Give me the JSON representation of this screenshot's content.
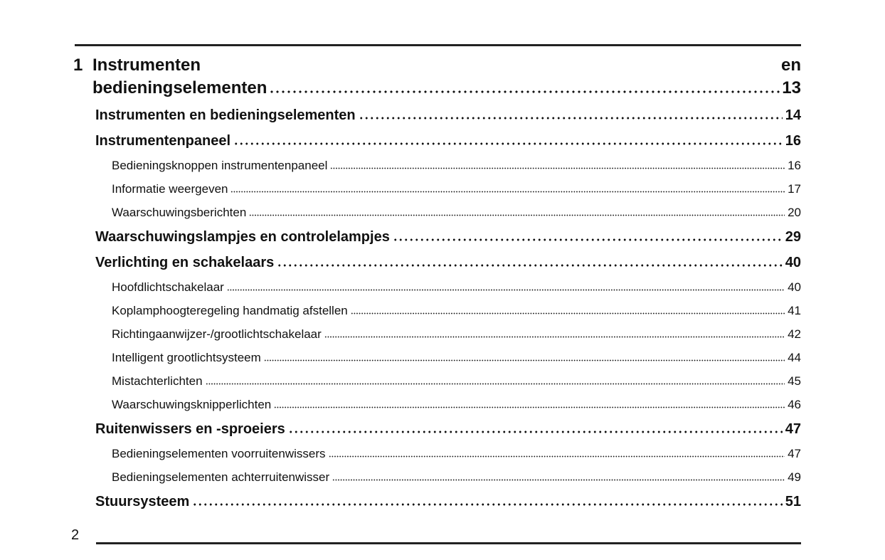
{
  "chapter": {
    "number": "1",
    "title_line1": "Instrumenten",
    "title_line1_end": "en",
    "title_line2": "bedieningselementen",
    "page": "13"
  },
  "entries": [
    {
      "level": 1,
      "label": "Instrumenten en bedieningselementen",
      "page": "14"
    },
    {
      "level": 1,
      "label": "Instrumentenpaneel",
      "page": "16"
    },
    {
      "level": 2,
      "label": "Bedieningsknoppen instrumentenpaneel",
      "page": "16"
    },
    {
      "level": 2,
      "label": "Informatie weergeven",
      "page": "17"
    },
    {
      "level": 2,
      "label": "Waarschuwingsberichten",
      "page": "20"
    },
    {
      "level": 1,
      "label": "Waarschuwingslampjes en controlelampjes",
      "page": "29"
    },
    {
      "level": 1,
      "label": "Verlichting en schakelaars",
      "page": "40"
    },
    {
      "level": 2,
      "label": "Hoofdlichtschakelaar",
      "page": "40"
    },
    {
      "level": 2,
      "label": "Koplamphoogteregeling handmatig afstellen",
      "page": "41"
    },
    {
      "level": 2,
      "label": "Richtingaanwijzer-/grootlichtschakelaar",
      "page": "42"
    },
    {
      "level": 2,
      "label": "Intelligent grootlichtsysteem",
      "page": "44"
    },
    {
      "level": 2,
      "label": "Mistachterlichten",
      "page": "45"
    },
    {
      "level": 2,
      "label": "Waarschuwingsknipperlichten",
      "page": "46"
    },
    {
      "level": 1,
      "label": "Ruitenwissers en -sproeiers",
      "page": "47"
    },
    {
      "level": 2,
      "label": "Bedieningselementen voorruitenwissers",
      "page": "47"
    },
    {
      "level": 2,
      "label": "Bedieningselementen achterruitenwisser",
      "page": "49"
    },
    {
      "level": 1,
      "label": "Stuursysteem",
      "page": "51"
    }
  ],
  "footer": {
    "page_number": "2"
  }
}
